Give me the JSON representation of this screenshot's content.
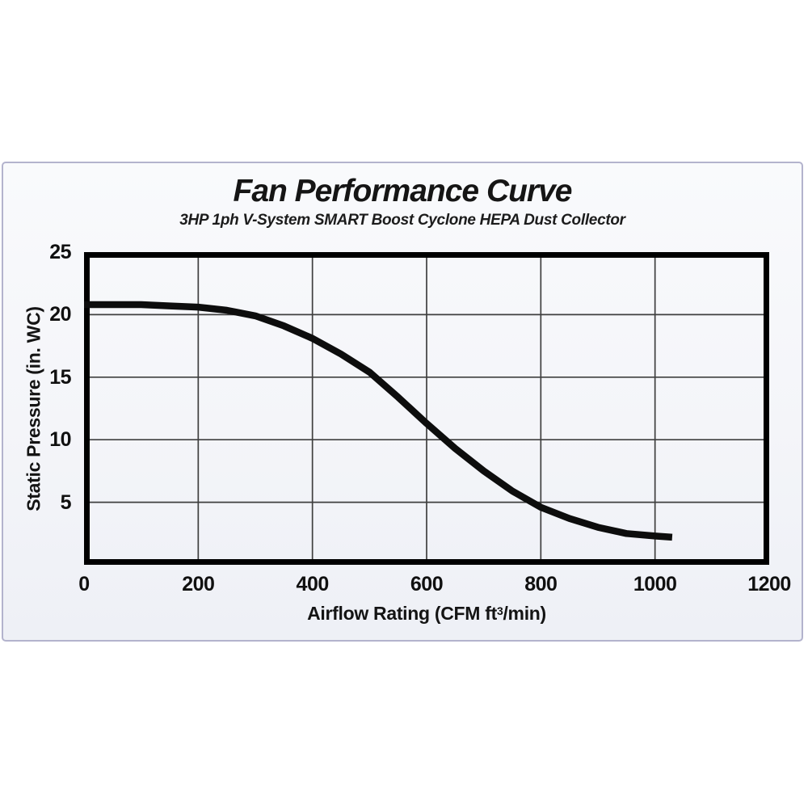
{
  "chart_data": {
    "type": "line",
    "title": "Fan Performance Curve",
    "subtitle": "3HP 1ph V-System SMART Boost Cyclone HEPA Dust Collector",
    "xlabel_prefix": "Airflow Rating (CFM ft",
    "xlabel_sup": "3",
    "xlabel_suffix": "/min)",
    "ylabel": "Static Pressure (in. WC)",
    "xlim": [
      0,
      1200
    ],
    "ylim": [
      0,
      25
    ],
    "xticks": [
      0,
      200,
      400,
      600,
      800,
      1000,
      1200
    ],
    "yticks": [
      5,
      10,
      15,
      20,
      25
    ],
    "grid": true,
    "legend": "none",
    "series": [
      {
        "name": "fan-performance-curve",
        "x": [
          0,
          50,
          100,
          150,
          200,
          250,
          300,
          350,
          400,
          450,
          500,
          550,
          600,
          650,
          700,
          750,
          800,
          850,
          900,
          950,
          1000,
          1030
        ],
        "y": [
          20.8,
          20.8,
          20.8,
          20.7,
          20.6,
          20.35,
          19.9,
          19.1,
          18.1,
          16.85,
          15.4,
          13.4,
          11.3,
          9.3,
          7.5,
          5.9,
          4.6,
          3.7,
          3.0,
          2.5,
          2.3,
          2.2
        ]
      }
    ],
    "colors": {
      "curve": "#0d0d0d",
      "grid": "#3f3f3f",
      "frame": "#000000",
      "panel_border": "#b3b3cd",
      "text": "#111111"
    }
  }
}
